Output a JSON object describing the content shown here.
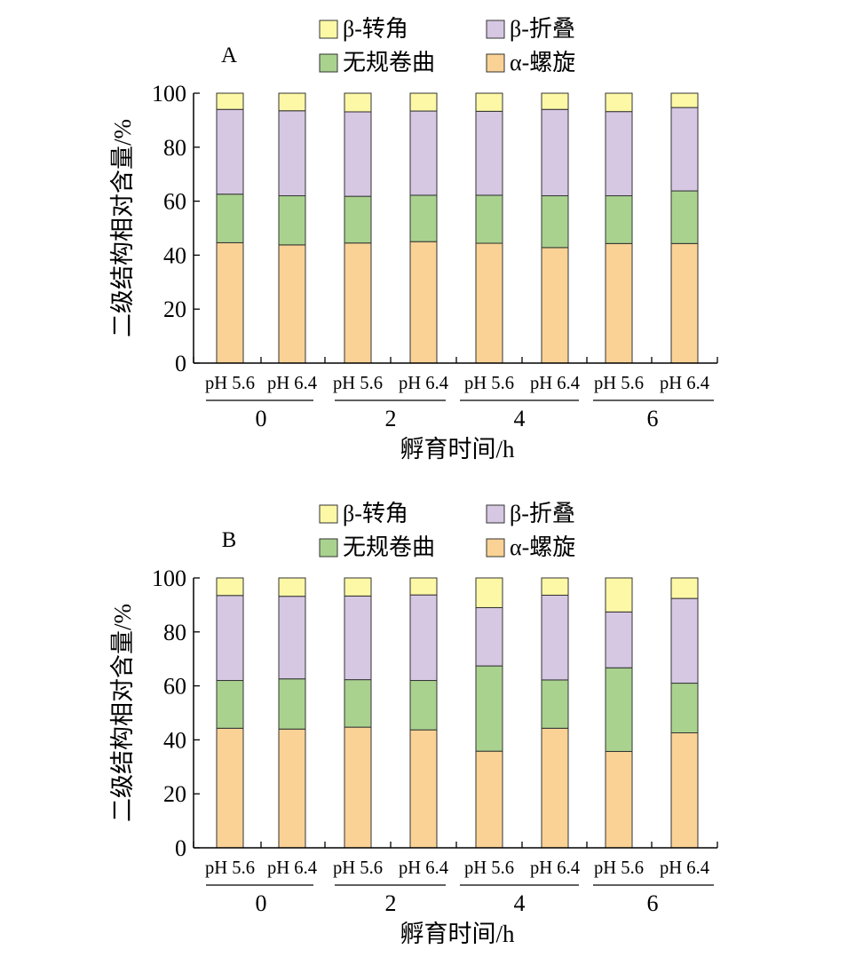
{
  "colors": {
    "beta_turn": "#fdf8a6",
    "beta_sheet": "#d6c7e3",
    "random_coil": "#a9d28f",
    "alpha_helix": "#fad295"
  },
  "chart_data": [
    {
      "type": "bar",
      "panel_label": "A",
      "stacked": true,
      "categories": [
        "pH 5.6",
        "pH 6.4",
        "pH 5.6",
        "pH 6.4",
        "pH 5.6",
        "pH 6.4",
        "pH 5.6",
        "pH 6.4"
      ],
      "groups": [
        "0",
        "2",
        "4",
        "6"
      ],
      "xlabel": "孵育时间/h",
      "ylabel": "二级结构相对含量/%",
      "ylim": [
        0,
        100
      ],
      "yticks": [
        "0",
        "20",
        "40",
        "60",
        "80",
        "100"
      ],
      "series": [
        {
          "name": "α-螺旋",
          "key": "alpha_helix",
          "values": [
            44.6,
            43.8,
            44.5,
            45.0,
            44.4,
            42.8,
            44.3,
            44.3
          ]
        },
        {
          "name": "无规卷曲",
          "key": "random_coil",
          "values": [
            18.0,
            18.2,
            17.3,
            17.2,
            17.8,
            19.2,
            17.7,
            19.5
          ]
        },
        {
          "name": "β-折叠",
          "key": "beta_sheet",
          "values": [
            31.4,
            31.5,
            31.3,
            31.2,
            31.1,
            32.0,
            31.2,
            30.9
          ]
        },
        {
          "name": "β-转角",
          "key": "beta_turn",
          "values": [
            6.0,
            6.5,
            6.9,
            6.6,
            6.7,
            6.0,
            6.8,
            5.3
          ]
        }
      ],
      "legend": [
        {
          "name": "β-转角",
          "key": "beta_turn"
        },
        {
          "name": "β-折叠",
          "key": "beta_sheet"
        },
        {
          "name": "无规卷曲",
          "key": "random_coil"
        },
        {
          "name": "α-螺旋",
          "key": "alpha_helix"
        }
      ],
      "legend_position": "top"
    },
    {
      "type": "bar",
      "panel_label": "B",
      "stacked": true,
      "categories": [
        "pH 5.6",
        "pH 6.4",
        "pH 5.6",
        "pH 6.4",
        "pH 5.6",
        "pH 6.4",
        "pH 5.6",
        "pH 6.4"
      ],
      "groups": [
        "0",
        "2",
        "4",
        "6"
      ],
      "xlabel": "孵育时间/h",
      "ylabel": "二级结构相对含量/%",
      "ylim": [
        0,
        100
      ],
      "yticks": [
        "0",
        "20",
        "40",
        "60",
        "80",
        "100"
      ],
      "series": [
        {
          "name": "α-螺旋",
          "key": "alpha_helix",
          "values": [
            44.3,
            44.0,
            44.7,
            43.7,
            35.8,
            44.3,
            35.7,
            42.6
          ]
        },
        {
          "name": "无规卷曲",
          "key": "random_coil",
          "values": [
            17.7,
            18.6,
            17.6,
            18.3,
            31.6,
            17.9,
            31.0,
            18.4
          ]
        },
        {
          "name": "β-折叠",
          "key": "beta_sheet",
          "values": [
            31.5,
            30.6,
            31.0,
            31.7,
            21.6,
            31.4,
            20.7,
            31.4
          ]
        },
        {
          "name": "β-转角",
          "key": "beta_turn",
          "values": [
            6.5,
            6.8,
            6.7,
            6.3,
            11.0,
            6.4,
            12.6,
            7.6
          ]
        }
      ],
      "legend": [
        {
          "name": "β-转角",
          "key": "beta_turn"
        },
        {
          "name": "β-折叠",
          "key": "beta_sheet"
        },
        {
          "name": "无规卷曲",
          "key": "random_coil"
        },
        {
          "name": "α-螺旋",
          "key": "alpha_helix"
        }
      ],
      "legend_position": "top"
    }
  ]
}
